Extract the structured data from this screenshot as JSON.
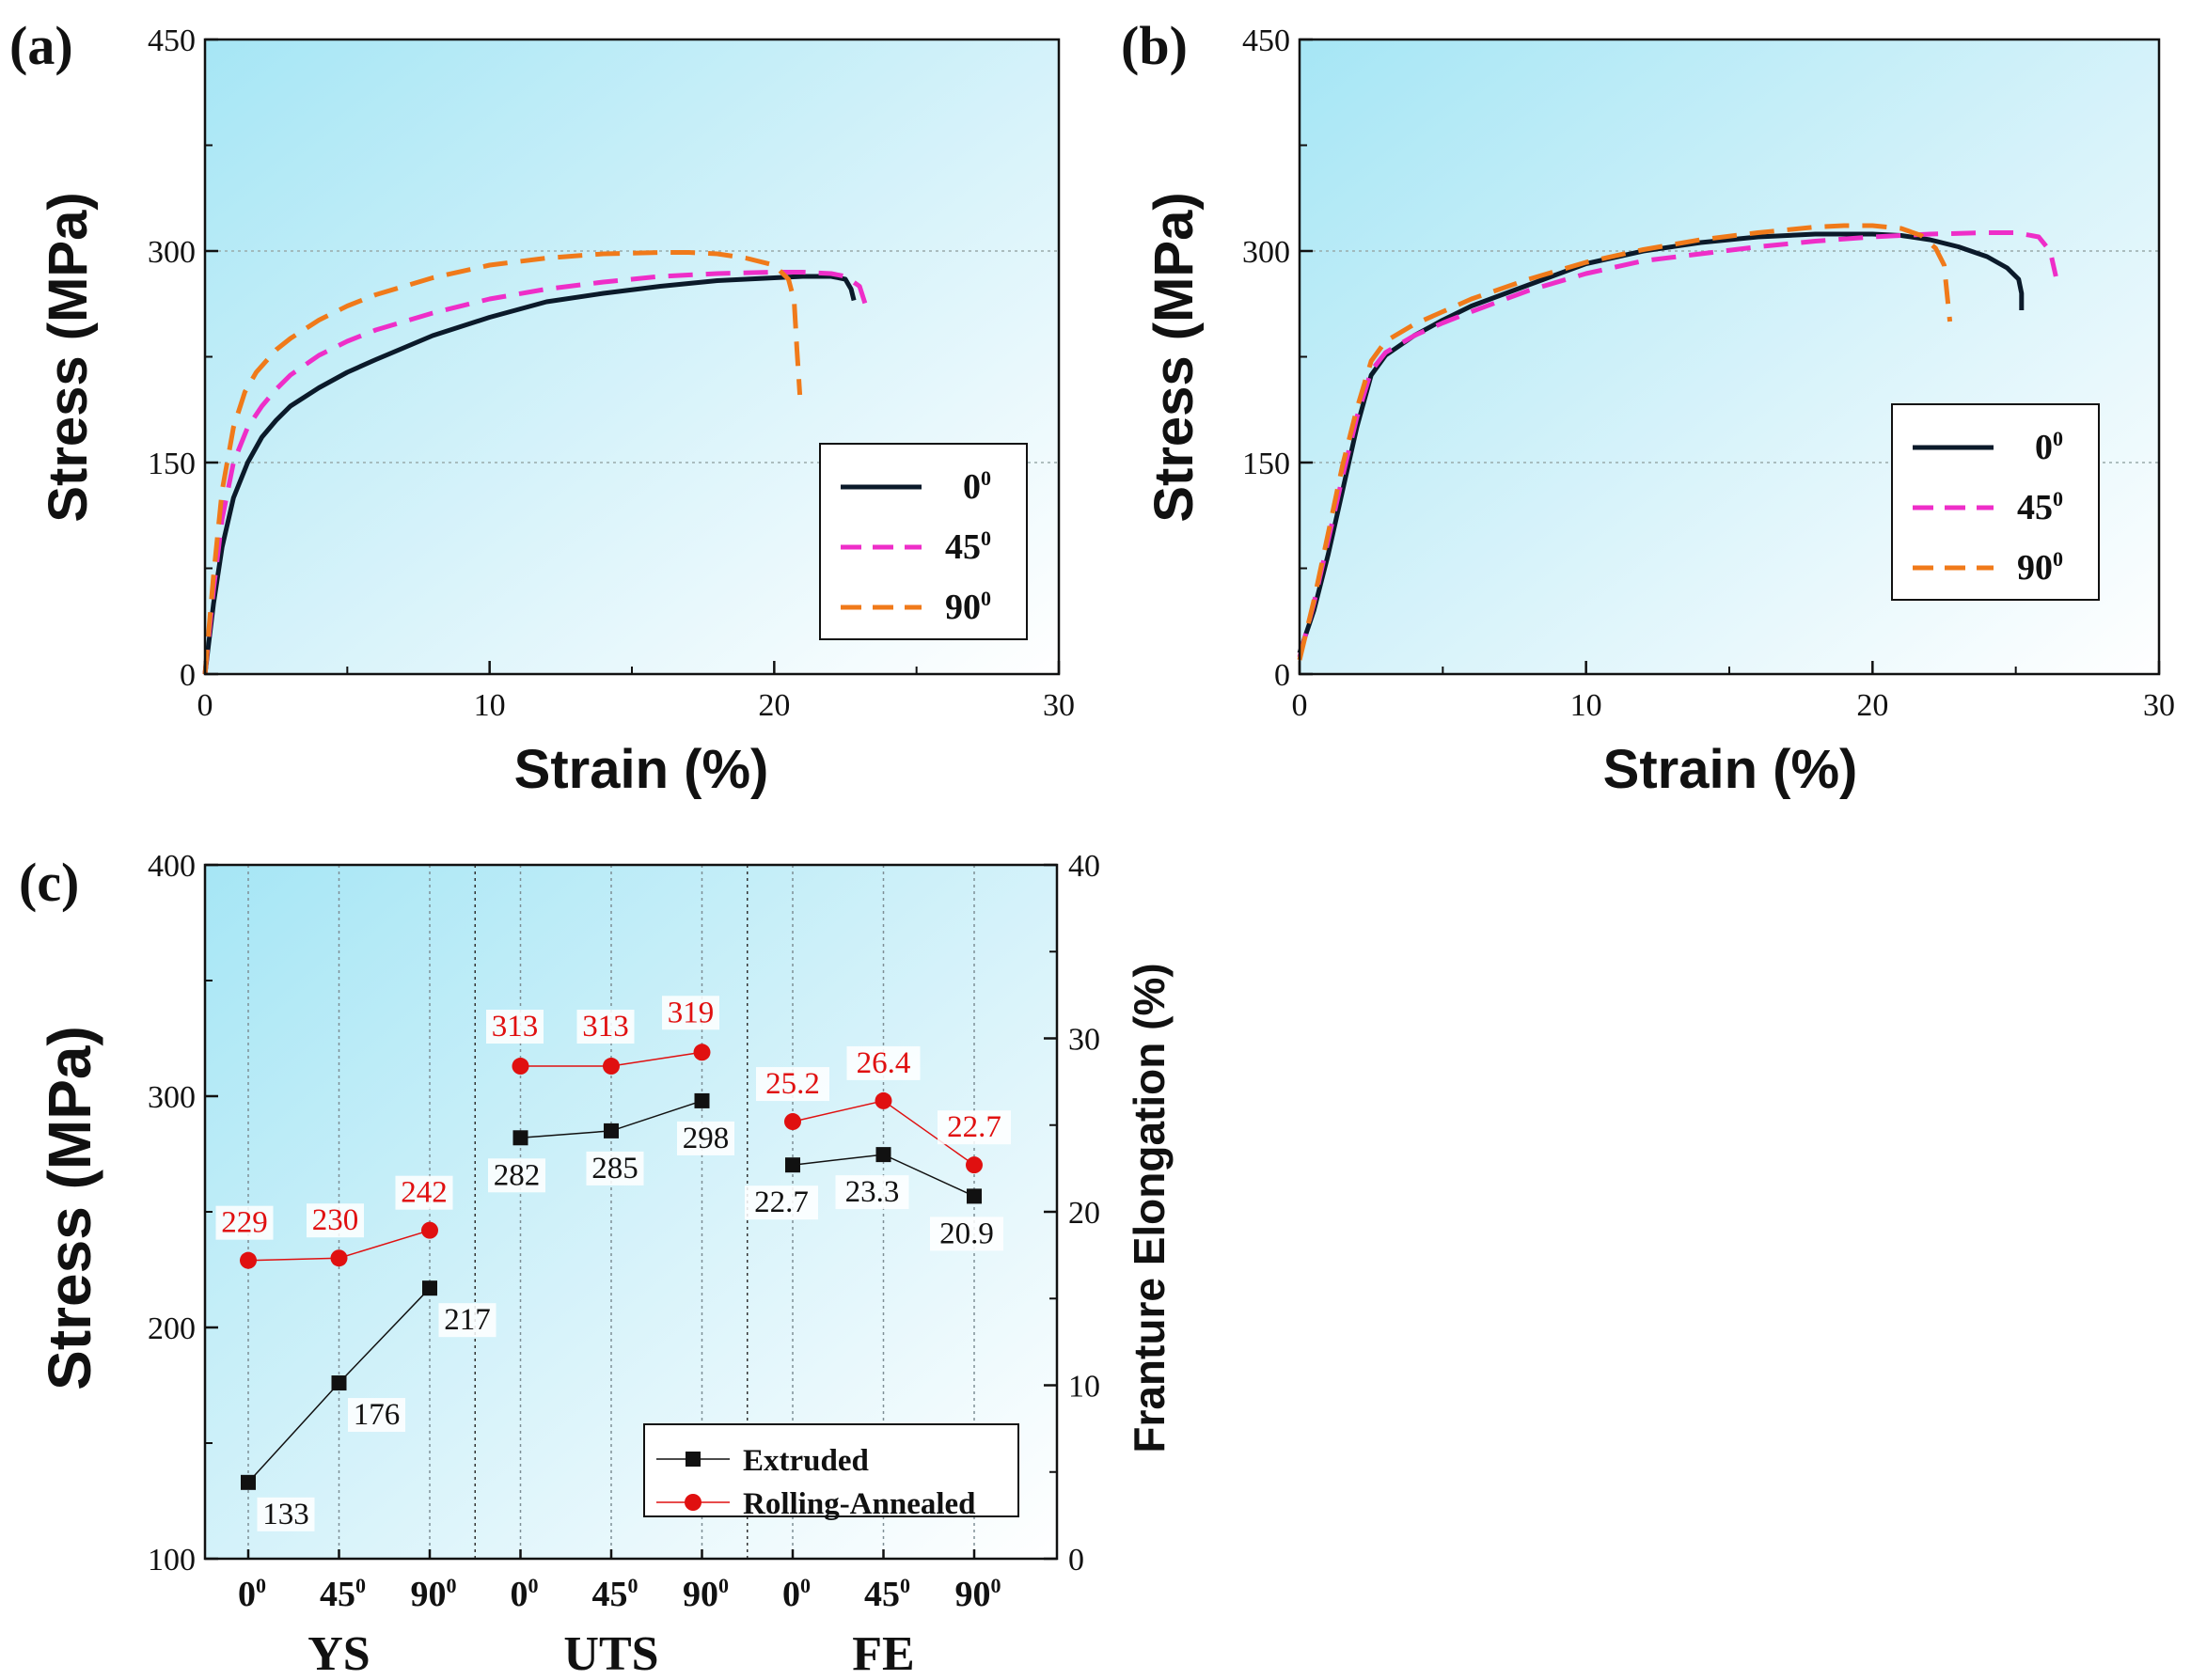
{
  "panels": {
    "a": {
      "label": "(a)"
    },
    "b": {
      "label": "(b)"
    },
    "c": {
      "label": "(c)"
    }
  },
  "chart_data": [
    {
      "id": "a",
      "type": "line",
      "xlabel": "Strain (%)",
      "ylabel": "Stress (MPa)",
      "xlim": [
        0,
        30
      ],
      "ylim": [
        0,
        450
      ],
      "xticks": [
        "0",
        "10",
        "20",
        "30"
      ],
      "yticks": [
        "0",
        "150",
        "300",
        "450"
      ],
      "legend_position": "lower-right",
      "series": [
        {
          "name": "0",
          "sup": "0",
          "color": "#0b1a2a",
          "dash": "solid",
          "x": [
            0,
            0.3,
            0.6,
            1.0,
            1.5,
            2.0,
            2.5,
            3,
            4,
            5,
            6,
            8,
            10,
            12,
            14,
            16,
            18,
            20,
            21,
            22,
            22.5,
            22.7,
            22.8
          ],
          "y": [
            0,
            50,
            90,
            125,
            150,
            168,
            180,
            190,
            203,
            214,
            223,
            240,
            253,
            264,
            270,
            275,
            279,
            281,
            282,
            282,
            280,
            273,
            265
          ]
        },
        {
          "name": "45",
          "sup": "0",
          "color": "#ee2ec8",
          "dash": "dashed",
          "x": [
            0,
            0.3,
            0.6,
            1.0,
            1.5,
            2.0,
            2.5,
            3,
            4,
            5,
            6,
            8,
            10,
            12,
            14,
            16,
            18,
            20,
            21,
            22,
            22.5,
            23,
            23.3
          ],
          "y": [
            0,
            60,
            110,
            150,
            175,
            190,
            202,
            212,
            226,
            236,
            244,
            256,
            266,
            273,
            278,
            282,
            284,
            285,
            285,
            284,
            282,
            275,
            256
          ]
        },
        {
          "name": "90",
          "sup": "0",
          "color": "#f07a1a",
          "dash": "dashed",
          "x": [
            0,
            0.3,
            0.6,
            1.0,
            1.4,
            1.8,
            2.5,
            3,
            4,
            5,
            6,
            8,
            10,
            12,
            14,
            16,
            17,
            18,
            19,
            20,
            20.5,
            20.7,
            20.8,
            20.9
          ],
          "y": [
            0,
            70,
            130,
            175,
            200,
            214,
            230,
            238,
            251,
            261,
            269,
            281,
            290,
            295,
            298,
            299,
            299,
            298,
            295,
            290,
            280,
            265,
            230,
            198
          ]
        }
      ]
    },
    {
      "id": "b",
      "type": "line",
      "xlabel": "Strain (%)",
      "ylabel": "Stress (MPa)",
      "xlim": [
        0,
        30
      ],
      "ylim": [
        0,
        450
      ],
      "xticks": [
        "0",
        "10",
        "20",
        "30"
      ],
      "yticks": [
        "0",
        "150",
        "300",
        "450"
      ],
      "legend_position": "center-right",
      "series": [
        {
          "name": "0",
          "sup": "0",
          "color": "#0b1a2a",
          "dash": "solid",
          "x": [
            0,
            0.5,
            1.0,
            1.5,
            2.0,
            2.5,
            3,
            4,
            5,
            6,
            8,
            10,
            12,
            14,
            16,
            18,
            20,
            21,
            22,
            23,
            24,
            24.7,
            25.1,
            25.2,
            25.2
          ],
          "y": [
            15,
            45,
            85,
            130,
            175,
            212,
            226,
            240,
            251,
            261,
            276,
            291,
            300,
            306,
            310,
            312,
            312,
            311,
            308,
            303,
            296,
            288,
            280,
            270,
            258
          ]
        },
        {
          "name": "45",
          "sup": "0",
          "color": "#ee2ec8",
          "dash": "dashed",
          "x": [
            0,
            0.5,
            1.0,
            1.5,
            2.0,
            2.5,
            3,
            4,
            5,
            6,
            8,
            10,
            12,
            14,
            16,
            18,
            20,
            22,
            24,
            25,
            25.8,
            26.2,
            26.4
          ],
          "y": [
            12,
            50,
            95,
            140,
            182,
            215,
            228,
            240,
            249,
            257,
            272,
            284,
            293,
            298,
            303,
            307,
            310,
            312,
            313,
            313,
            310,
            300,
            282
          ]
        },
        {
          "name": "90",
          "sup": "0",
          "color": "#f07a1a",
          "dash": "dashed",
          "x": [
            0,
            0.5,
            1.0,
            1.5,
            2.0,
            2.5,
            3,
            4,
            5,
            6,
            8,
            10,
            12,
            14,
            16,
            18,
            19,
            20,
            21,
            21.7,
            22.2,
            22.5,
            22.6,
            22.7
          ],
          "y": [
            10,
            52,
            100,
            148,
            188,
            222,
            236,
            248,
            257,
            266,
            280,
            292,
            301,
            308,
            313,
            317,
            318,
            318,
            316,
            311,
            302,
            290,
            270,
            250
          ]
        }
      ]
    },
    {
      "id": "c",
      "type": "line",
      "ylabel": "Stress (MPa)",
      "y2label": "Franture Elongation (%)",
      "ylim": [
        100,
        400
      ],
      "y2lim": [
        0,
        40
      ],
      "yticks": [
        "100",
        "200",
        "300",
        "400"
      ],
      "y2ticks": [
        "0",
        "10",
        "20",
        "30",
        "40"
      ],
      "categories": [
        "0",
        "45",
        "90",
        "0",
        "45",
        "90",
        "0",
        "45",
        "90"
      ],
      "category_sup": "0",
      "groups": [
        "YS",
        "UTS",
        "FE"
      ],
      "legend_position": "lower-right",
      "series": [
        {
          "name": "Extruded",
          "color": "#111111",
          "marker": "square",
          "groups": [
            {
              "axis": "left",
              "values": [
                133,
                176,
                217
              ],
              "labels": [
                "133",
                "176",
                "217"
              ]
            },
            {
              "axis": "left",
              "values": [
                282,
                285,
                298
              ],
              "labels": [
                "282",
                "285",
                "298"
              ]
            },
            {
              "axis": "right",
              "values": [
                22.7,
                23.3,
                20.9
              ],
              "labels": [
                "22.7",
                "23.3",
                "20.9"
              ]
            }
          ]
        },
        {
          "name": "Rolling-Annealed",
          "color": "#e01010",
          "marker": "circle",
          "groups": [
            {
              "axis": "left",
              "values": [
                229,
                230,
                242
              ],
              "labels": [
                "229",
                "230",
                "242"
              ]
            },
            {
              "axis": "left",
              "values": [
                313,
                313,
                319
              ],
              "labels": [
                "313",
                "313",
                "319"
              ]
            },
            {
              "axis": "right",
              "values": [
                25.2,
                26.4,
                22.7
              ],
              "labels": [
                "25.2",
                "26.4",
                "22.7"
              ]
            }
          ]
        }
      ]
    }
  ]
}
